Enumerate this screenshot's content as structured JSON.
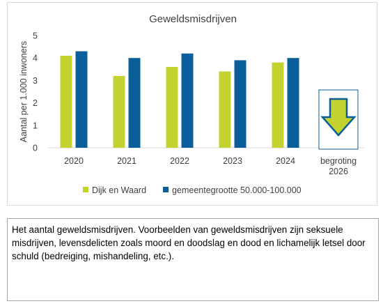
{
  "chart_data": {
    "type": "bar",
    "title": "Geweldsmisdrijven",
    "ylabel": "Aantal per 1.000 inwoners",
    "xlabel": "",
    "ylim": [
      0,
      5
    ],
    "yticks": [
      0,
      1,
      2,
      3,
      4,
      5
    ],
    "grid": false,
    "legend": "bottom",
    "categories": [
      "2020",
      "2021",
      "2022",
      "2023",
      "2024",
      "begroting 2026"
    ],
    "series": [
      {
        "name": "Dijk en Waard",
        "color": "#c3d22e",
        "values": [
          4.1,
          3.2,
          3.6,
          3.4,
          3.8,
          null
        ]
      },
      {
        "name": "gemeentegrootte 50.000-100.000",
        "color": "#0a5e9a",
        "values": [
          4.3,
          4.0,
          4.2,
          3.9,
          4.0,
          null
        ]
      }
    ],
    "annotation": {
      "type": "trend-arrow",
      "direction": "down",
      "category": "begroting 2026",
      "fill": "#c3d22e",
      "border": "#0a5e9a"
    }
  },
  "description": "Het aantal geweldsmisdrijven. Voorbeelden van geweldsmisdrijven zijn seksuele misdrijven, levensdelicten zoals moord en doodslag en dood en lichamelijk letsel door schuld (bedreiging, mishandeling, etc.)."
}
